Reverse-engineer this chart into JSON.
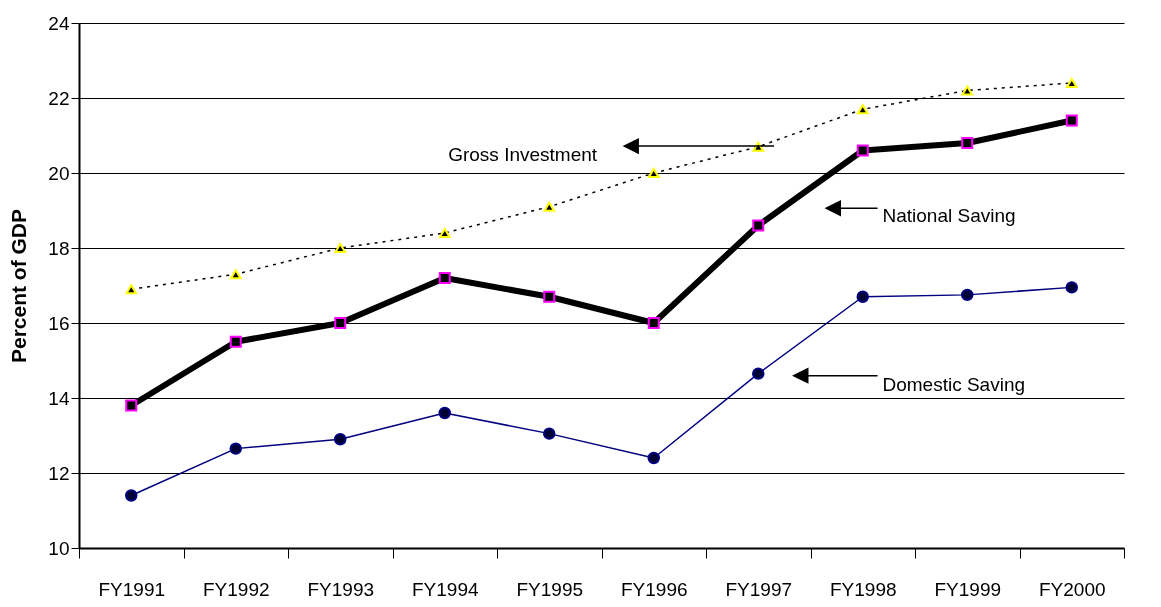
{
  "chart_data": {
    "type": "line",
    "ylabel": "Percent of GDP",
    "categories": [
      "FY1991",
      "FY1992",
      "FY1993",
      "FY1994",
      "FY1995",
      "FY1996",
      "FY1997",
      "FY1998",
      "FY1999",
      "FY2000"
    ],
    "series": [
      {
        "color": "#000000",
        "marker": "triangle",
        "line_style": "dotted",
        "values": [
          16.9,
          17.3,
          18.0,
          18.4,
          19.1,
          20.0,
          20.7,
          21.7,
          22.2,
          22.4
        ]
      },
      {
        "color": "#000000",
        "marker": "square",
        "line_style": "solid",
        "values": [
          13.8,
          15.5,
          16.0,
          17.2,
          16.7,
          16.0,
          18.6,
          20.6,
          20.8,
          21.4
        ]
      },
      {
        "color": "#000080",
        "marker": "circle",
        "line_style": "solid",
        "values": [
          11.4,
          12.65,
          12.9,
          13.6,
          13.05,
          12.4,
          14.65,
          16.7,
          16.75,
          16.95
        ]
      }
    ],
    "annotations": [
      "Gross Investment",
      "National Saving",
      "Domestic Saving"
    ],
    "ylim": [
      10,
      24
    ],
    "yticks": [
      10,
      12,
      14,
      16,
      18,
      20,
      22,
      24
    ],
    "grid": "y"
  }
}
